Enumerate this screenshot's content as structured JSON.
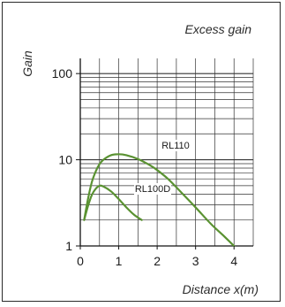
{
  "chart_data": {
    "type": "line",
    "title": "Excess gain",
    "xlabel": "Distance x(m)",
    "ylabel": "Gain",
    "x_ticks": [
      "0",
      "1",
      "2",
      "3",
      "4"
    ],
    "y_ticks": [
      "1",
      "10",
      "100"
    ],
    "xlim": [
      0,
      4.5
    ],
    "ylim": [
      1,
      150
    ],
    "y_scale": "log",
    "grid": true,
    "series": [
      {
        "name": "RL110",
        "x": [
          0.1,
          0.2,
          0.3,
          0.4,
          0.5,
          0.6,
          0.8,
          1.0,
          1.2,
          1.5,
          1.8,
          2.0,
          2.3,
          2.6,
          3.0,
          3.4,
          3.7,
          4.0
        ],
        "y": [
          2.0,
          3.5,
          5.5,
          7.3,
          8.9,
          10.0,
          11.3,
          11.6,
          11.3,
          10.2,
          8.7,
          7.6,
          5.9,
          4.3,
          2.8,
          1.8,
          1.35,
          1.0
        ]
      },
      {
        "name": "RL100D",
        "x": [
          0.1,
          0.2,
          0.3,
          0.4,
          0.5,
          0.6,
          0.8,
          1.0,
          1.2,
          1.4,
          1.6
        ],
        "y": [
          2.0,
          2.9,
          3.9,
          4.6,
          5.0,
          4.9,
          4.3,
          3.5,
          2.8,
          2.3,
          2.0
        ]
      }
    ],
    "line_color": "#5a9232"
  }
}
